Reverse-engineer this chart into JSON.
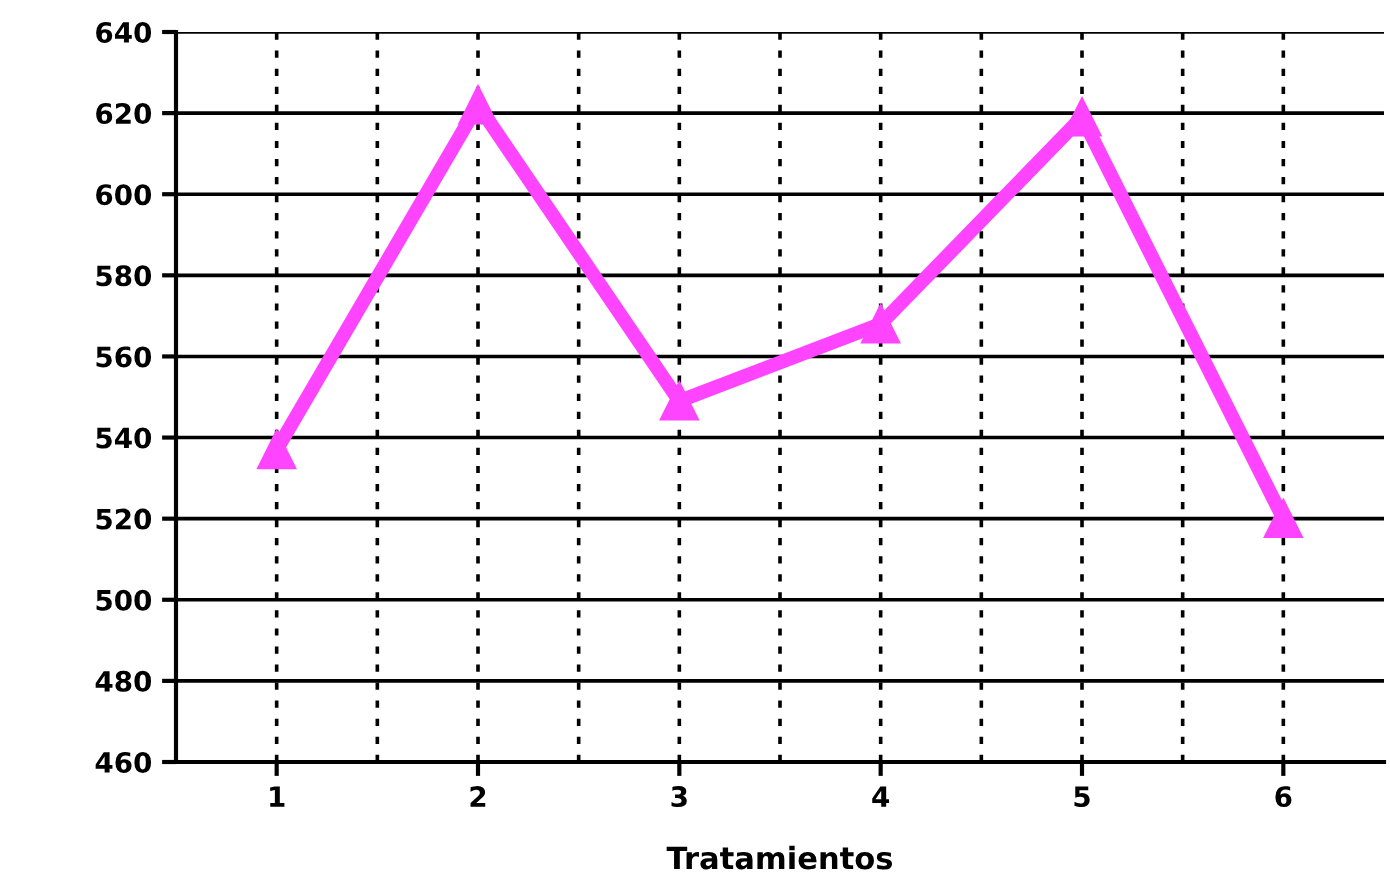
{
  "chart_data": {
    "type": "line",
    "xlabel": "Tratamientos",
    "categories": [
      "1",
      "2",
      "3",
      "4",
      "5",
      "6"
    ],
    "series": [
      {
        "color": "#ff44ff",
        "values": [
          537,
          622,
          549,
          568,
          619,
          520
        ]
      }
    ],
    "ylim": [
      460,
      640
    ],
    "yticks": [
      460,
      480,
      500,
      520,
      540,
      560,
      580,
      600,
      620,
      640
    ],
    "grid": true,
    "marker": "triangle",
    "line_style": "solid"
  }
}
